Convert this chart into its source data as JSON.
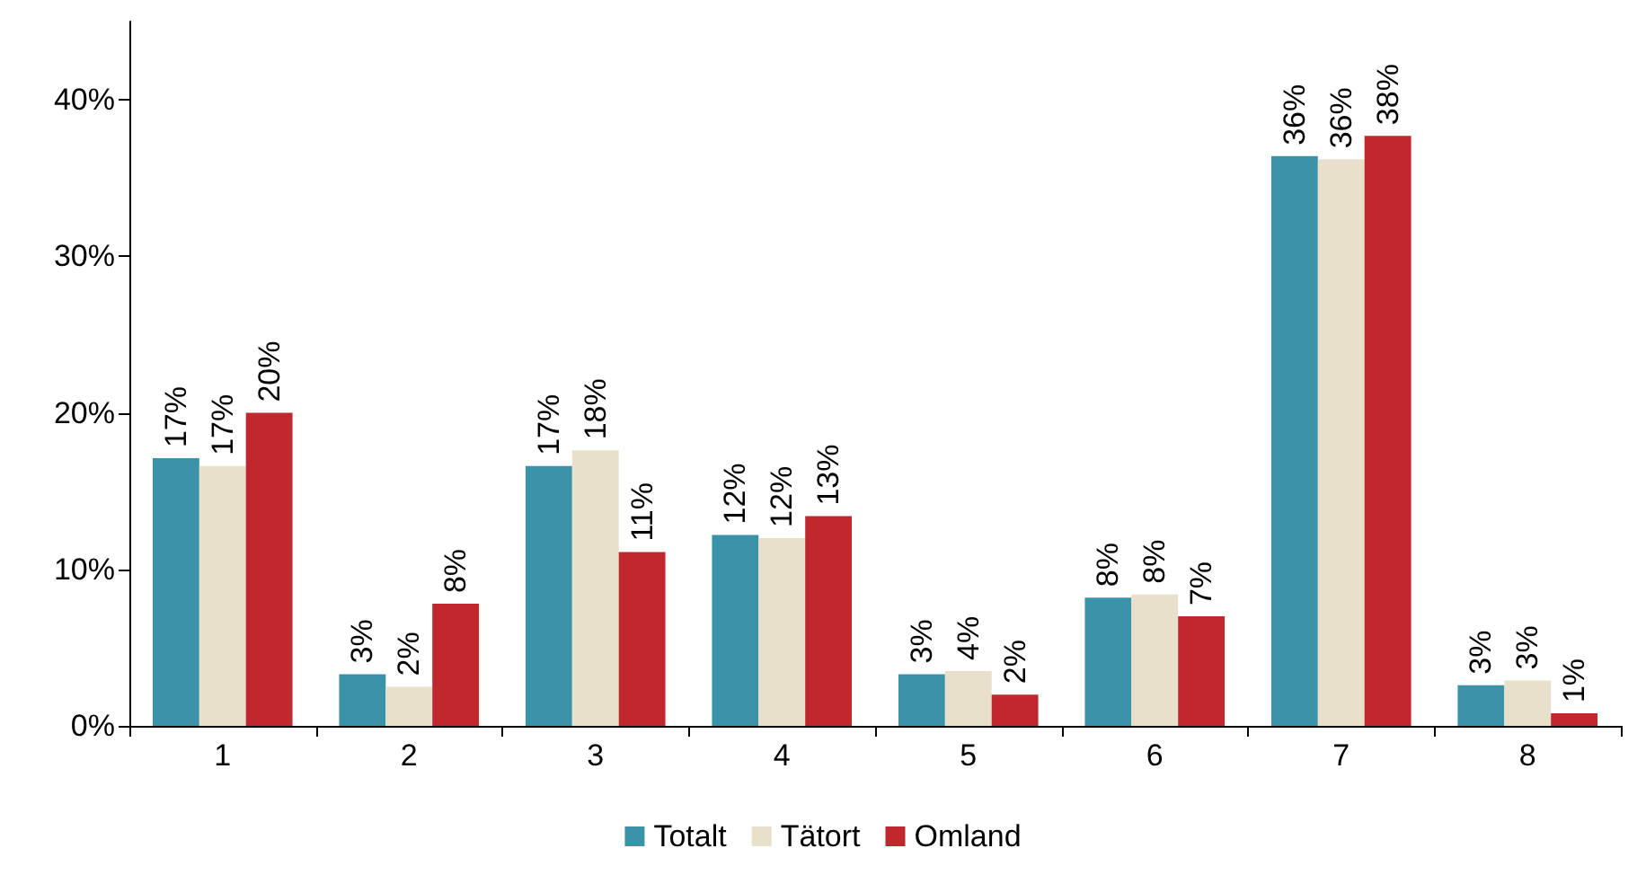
{
  "chart_data": {
    "type": "bar",
    "categories": [
      "1",
      "2",
      "3",
      "4",
      "5",
      "6",
      "7",
      "8"
    ],
    "series": [
      {
        "name": "Totalt",
        "color": "#3a93a8",
        "values": [
          17.1,
          3.3,
          16.6,
          12.2,
          3.3,
          8.2,
          36.4,
          2.6
        ],
        "value_labels": [
          "17%",
          "3%",
          "17%",
          "12%",
          "3%",
          "8%",
          "36%",
          "3%"
        ]
      },
      {
        "name": "Tätort",
        "color": "#e8e0cb",
        "values": [
          16.6,
          2.5,
          17.6,
          12.0,
          3.5,
          8.4,
          36.2,
          2.9
        ],
        "value_labels": [
          "17%",
          "2%",
          "18%",
          "12%",
          "4%",
          "8%",
          "36%",
          "3%"
        ]
      },
      {
        "name": "Omland",
        "color": "#c0282d",
        "values": [
          20.0,
          7.8,
          11.1,
          13.4,
          2.0,
          7.0,
          37.7,
          0.8
        ],
        "value_labels": [
          "20%",
          "8%",
          "11%",
          "13%",
          "2%",
          "7%",
          "38%",
          "1%"
        ]
      }
    ],
    "ylim": [
      0,
      45
    ],
    "yticks": [
      {
        "value": 0,
        "label": "0%"
      },
      {
        "value": 10,
        "label": "10%"
      },
      {
        "value": 20,
        "label": "20%"
      },
      {
        "value": 30,
        "label": "30%"
      },
      {
        "value": 40,
        "label": "40%"
      }
    ],
    "grid": false,
    "legend": "bottom"
  }
}
